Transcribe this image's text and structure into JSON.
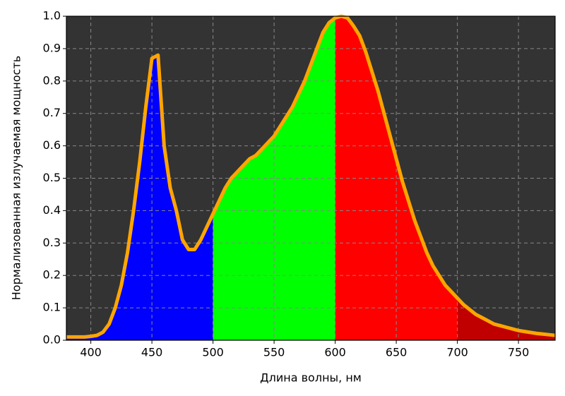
{
  "chart_data": {
    "type": "line",
    "xlabel": "Длина волны, нм",
    "ylabel": "Нормализованная излучаемая мощность",
    "x": [
      380,
      385,
      390,
      395,
      400,
      405,
      410,
      415,
      420,
      425,
      430,
      435,
      440,
      445,
      450,
      455,
      460,
      465,
      470,
      475,
      480,
      485,
      490,
      495,
      500,
      505,
      510,
      515,
      520,
      525,
      530,
      535,
      540,
      545,
      550,
      555,
      560,
      565,
      570,
      575,
      580,
      585,
      590,
      595,
      600,
      605,
      610,
      615,
      620,
      625,
      630,
      635,
      640,
      645,
      650,
      655,
      660,
      665,
      670,
      675,
      680,
      685,
      690,
      695,
      700,
      705,
      710,
      715,
      720,
      725,
      730,
      735,
      740,
      745,
      750,
      755,
      760,
      765,
      770,
      775,
      780
    ],
    "series": [
      {
        "color": "#ffa500",
        "values": [
          0.01,
          0.01,
          0.01,
          0.01,
          0.012,
          0.015,
          0.025,
          0.05,
          0.1,
          0.17,
          0.27,
          0.4,
          0.55,
          0.72,
          0.87,
          0.88,
          0.6,
          0.47,
          0.4,
          0.31,
          0.28,
          0.28,
          0.31,
          0.35,
          0.39,
          0.43,
          0.47,
          0.5,
          0.52,
          0.54,
          0.56,
          0.57,
          0.59,
          0.61,
          0.63,
          0.66,
          0.69,
          0.72,
          0.76,
          0.8,
          0.85,
          0.9,
          0.95,
          0.98,
          0.995,
          1.0,
          0.995,
          0.97,
          0.94,
          0.89,
          0.83,
          0.77,
          0.7,
          0.63,
          0.56,
          0.49,
          0.43,
          0.37,
          0.32,
          0.27,
          0.23,
          0.2,
          0.17,
          0.15,
          0.13,
          0.11,
          0.095,
          0.08,
          0.07,
          0.06,
          0.05,
          0.045,
          0.04,
          0.035,
          0.03,
          0.027,
          0.024,
          0.021,
          0.019,
          0.017,
          0.015
        ]
      }
    ],
    "bands": [
      {
        "from": 380,
        "to": 500,
        "color": "#0000ff"
      },
      {
        "from": 500,
        "to": 600,
        "color": "#00ff00"
      },
      {
        "from": 600,
        "to": 700,
        "color": "#ff0000"
      },
      {
        "from": 700,
        "to": 780,
        "color": "#c00000"
      }
    ],
    "xlim": [
      380,
      780
    ],
    "xticks": [
      400,
      450,
      500,
      550,
      600,
      650,
      700,
      750
    ],
    "ylim": [
      0,
      1
    ],
    "yticks": [
      {
        "value": 0,
        "label": "0.0"
      },
      0.1,
      0.2,
      0.3,
      0.4,
      0.5,
      0.6,
      0.7,
      0.8,
      0.9,
      {
        "value": 1,
        "label": "1.0"
      }
    ],
    "background": "#333333",
    "grid": true
  }
}
